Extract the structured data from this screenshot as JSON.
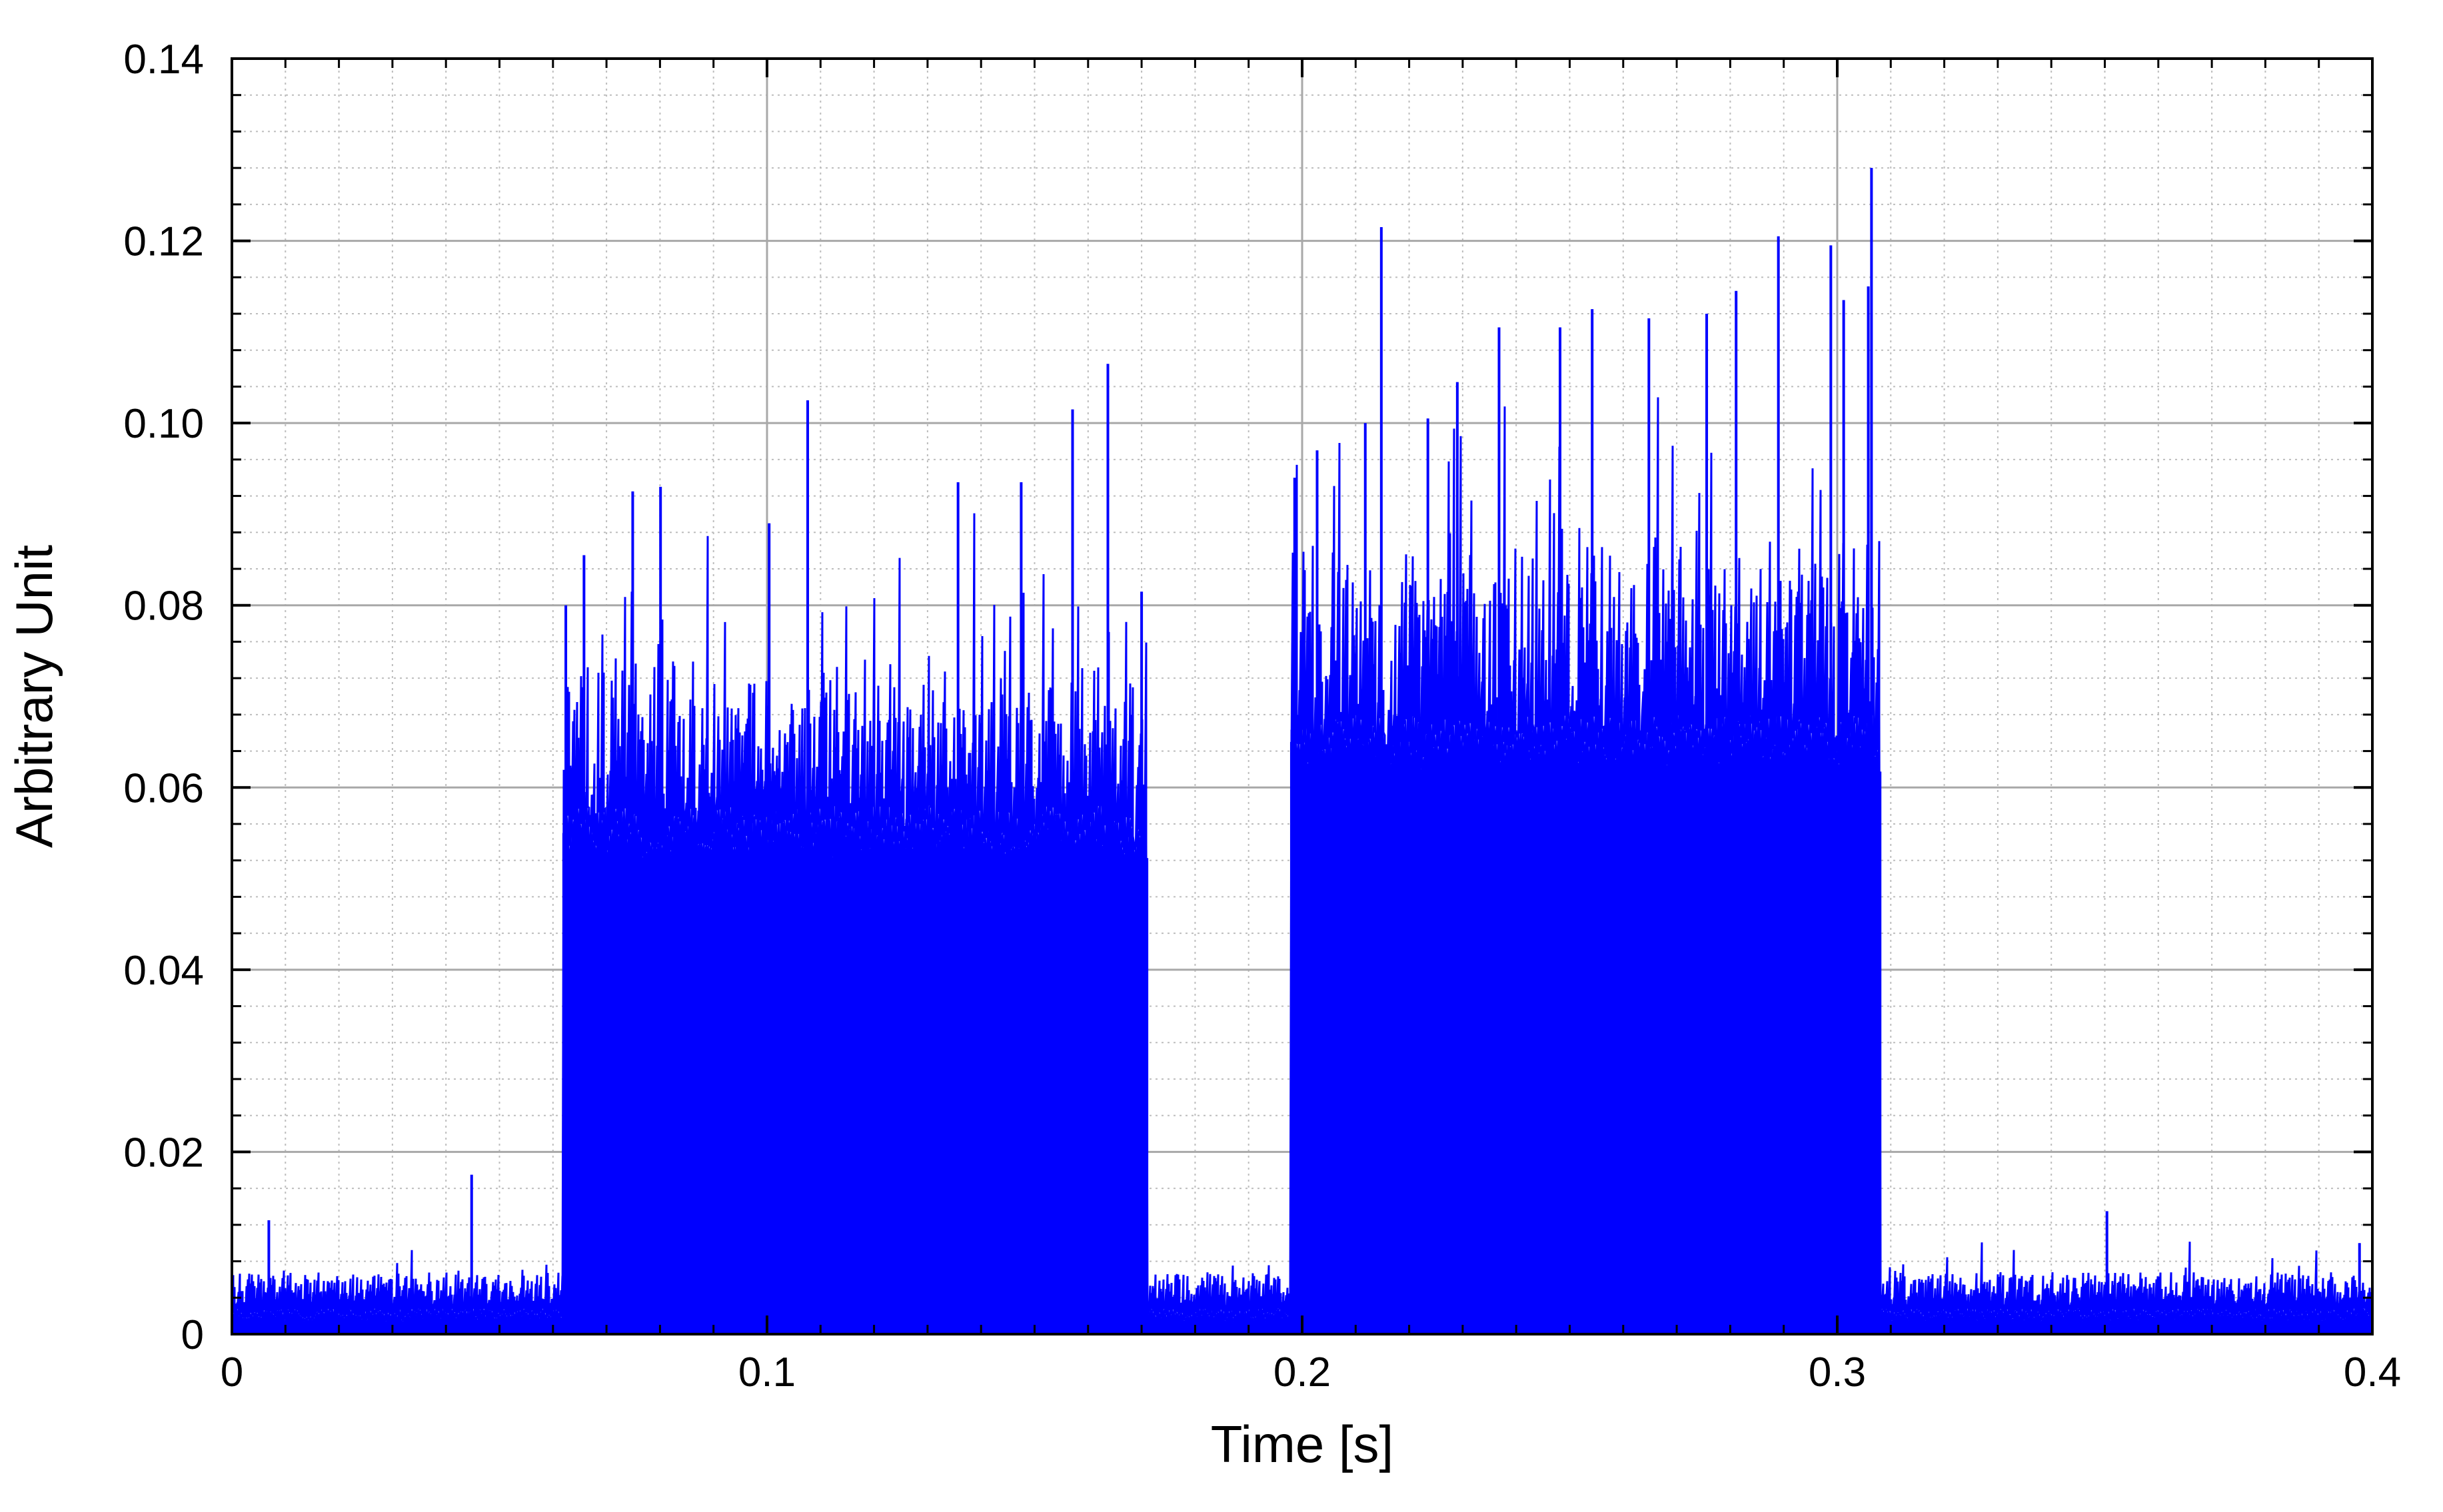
{
  "chart_data": {
    "type": "line",
    "xlabel": "Time [s]",
    "ylabel": "Arbitrary Unit",
    "xlim": [
      0,
      0.4
    ],
    "ylim": [
      0,
      0.14
    ],
    "x_ticks": [
      0,
      0.1,
      0.2,
      0.3,
      0.4
    ],
    "x_tick_labels": [
      "0",
      "0.1",
      "0.2",
      "0.3",
      "0.4"
    ],
    "y_ticks": [
      0,
      0.02,
      0.04,
      0.06,
      0.08,
      0.1,
      0.12,
      0.14
    ],
    "y_tick_labels": [
      "0",
      "0.02",
      "0.04",
      "0.06",
      "0.08",
      "0.10",
      "0.12",
      "0.14"
    ],
    "grid": true,
    "minor_grid": true,
    "legend": "none",
    "series": [
      {
        "color": "#0000ff",
        "noise_floor": 0.004,
        "bursts": [
          {
            "start": 0.062,
            "end": 0.171,
            "fill_level": 0.055,
            "typical_peak": 0.072,
            "max_peak": 0.106
          },
          {
            "start": 0.198,
            "end": 0.308,
            "fill_level": 0.065,
            "typical_peak": 0.085,
            "max_peak": 0.128
          }
        ],
        "peaks": [
          {
            "x": 0.0069,
            "y": 0.0125
          },
          {
            "x": 0.0448,
            "y": 0.0175
          },
          {
            "x": 0.0624,
            "y": 0.08
          },
          {
            "x": 0.0658,
            "y": 0.0855
          },
          {
            "x": 0.0749,
            "y": 0.0925
          },
          {
            "x": 0.0801,
            "y": 0.093
          },
          {
            "x": 0.1004,
            "y": 0.089
          },
          {
            "x": 0.1076,
            "y": 0.1025
          },
          {
            "x": 0.1357,
            "y": 0.0935
          },
          {
            "x": 0.1475,
            "y": 0.0935
          },
          {
            "x": 0.1571,
            "y": 0.1015
          },
          {
            "x": 0.1637,
            "y": 0.1065
          },
          {
            "x": 0.17,
            "y": 0.0815
          },
          {
            "x": 0.1986,
            "y": 0.094
          },
          {
            "x": 0.2028,
            "y": 0.097
          },
          {
            "x": 0.2118,
            "y": 0.1
          },
          {
            "x": 0.2148,
            "y": 0.1215
          },
          {
            "x": 0.2235,
            "y": 0.1005
          },
          {
            "x": 0.229,
            "y": 0.1045
          },
          {
            "x": 0.2368,
            "y": 0.1105
          },
          {
            "x": 0.2482,
            "y": 0.1105
          },
          {
            "x": 0.2542,
            "y": 0.1125
          },
          {
            "x": 0.2648,
            "y": 0.1115
          },
          {
            "x": 0.2756,
            "y": 0.112
          },
          {
            "x": 0.2811,
            "y": 0.1145
          },
          {
            "x": 0.289,
            "y": 0.1205
          },
          {
            "x": 0.2988,
            "y": 0.1195
          },
          {
            "x": 0.3012,
            "y": 0.1135
          },
          {
            "x": 0.3064,
            "y": 0.128
          },
          {
            "x": 0.3058,
            "y": 0.115
          },
          {
            "x": 0.3504,
            "y": 0.0135
          },
          {
            "x": 0.3976,
            "y": 0.01
          }
        ]
      }
    ]
  }
}
